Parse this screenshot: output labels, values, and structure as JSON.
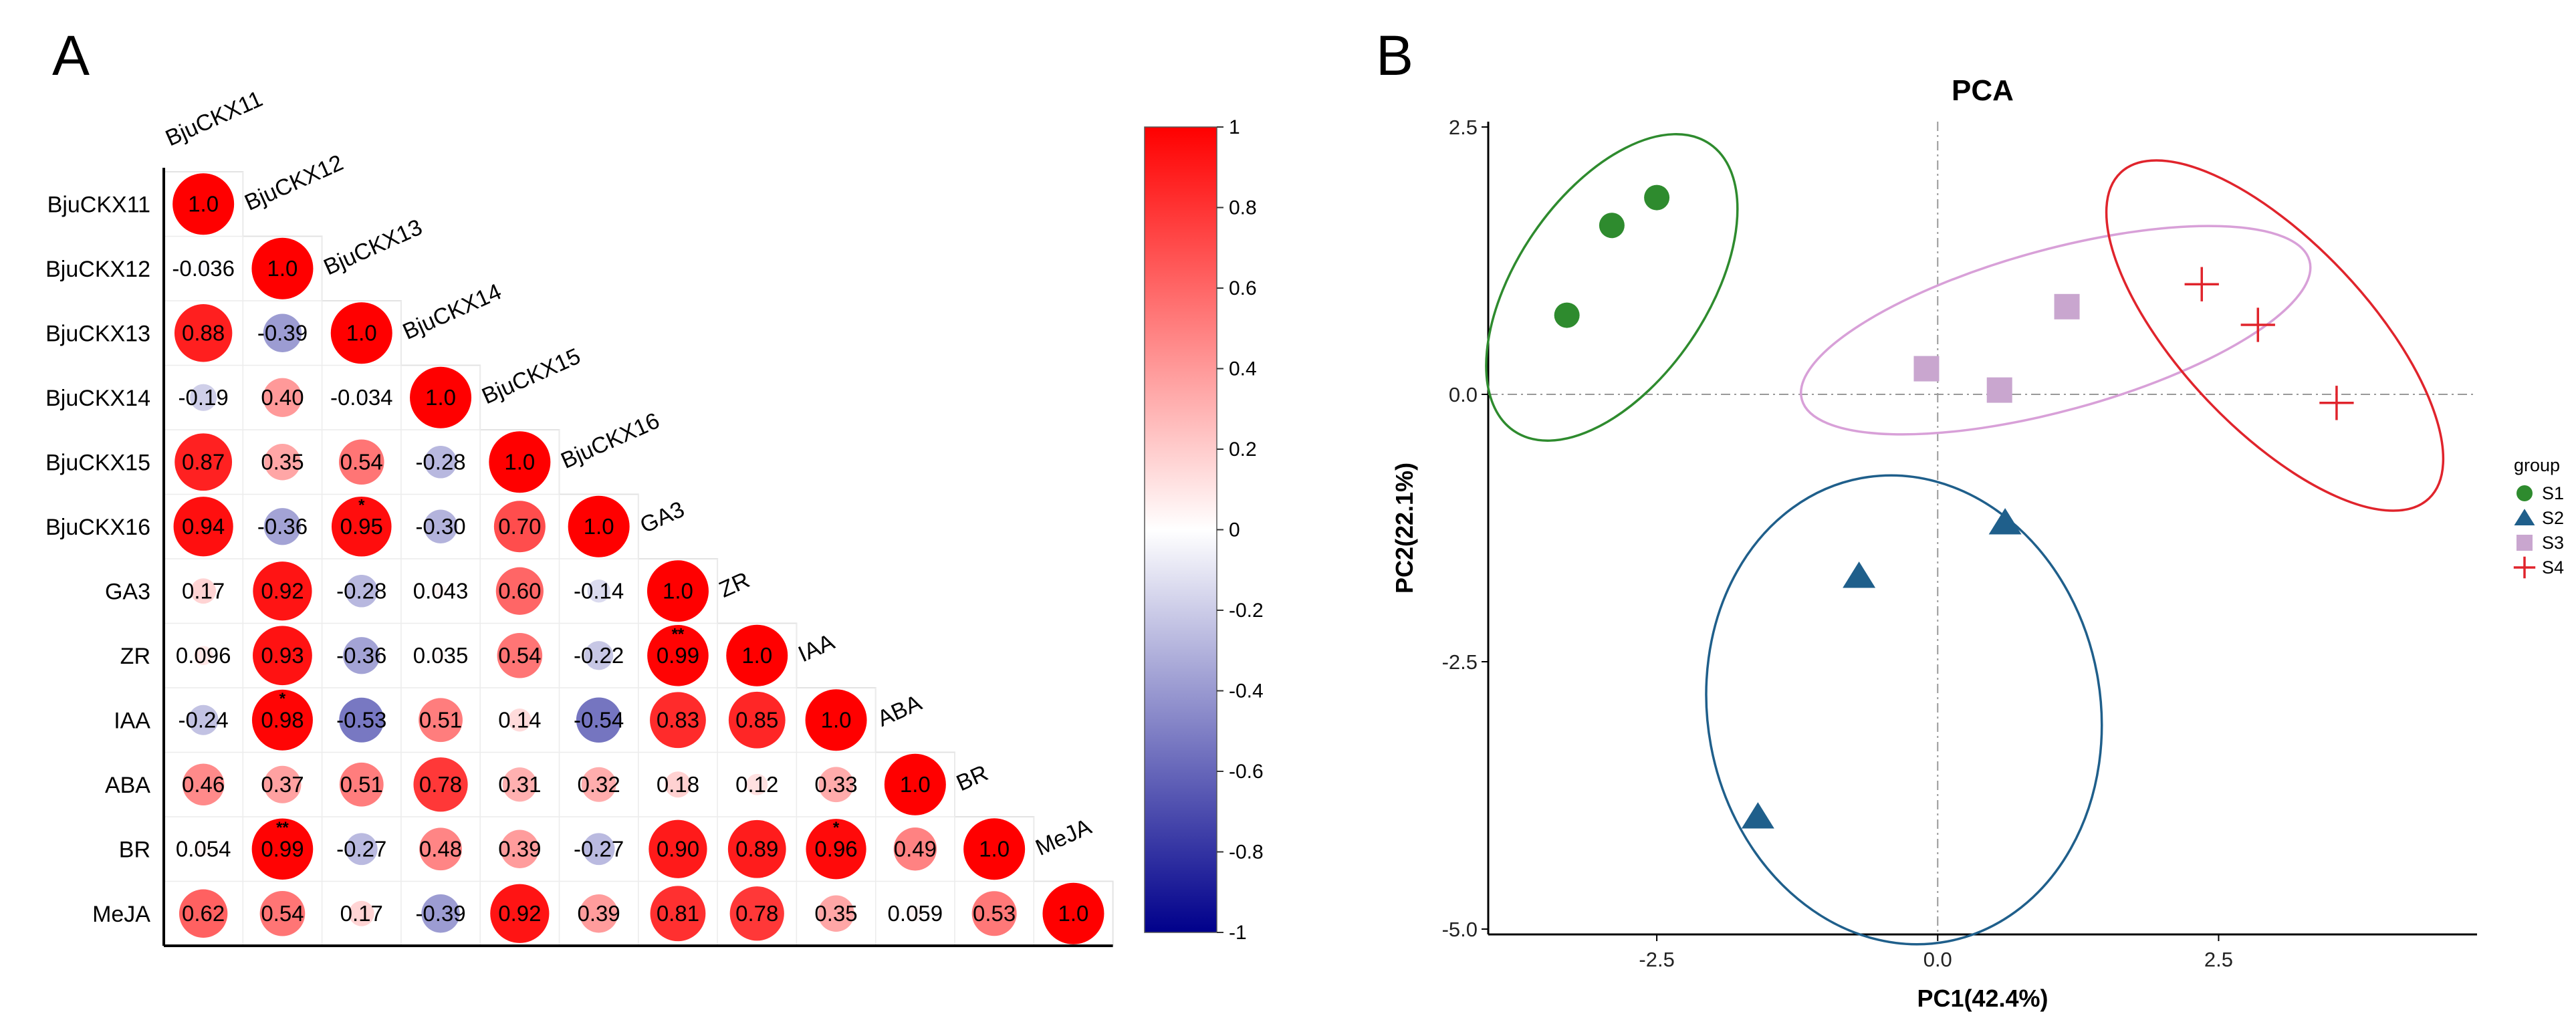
{
  "panels": {
    "left_label": "A",
    "right_label": "B"
  },
  "chart_data": [
    {
      "type": "heatmap",
      "variables": [
        "BjuCKX11",
        "BjuCKX12",
        "BjuCKX13",
        "BjuCKX14",
        "BjuCKX15",
        "BjuCKX16",
        "GA3",
        "ZR",
        "IAA",
        "ABA",
        "BR",
        "MeJA"
      ],
      "matrix_lower": [
        [
          1.0
        ],
        [
          -0.036,
          1.0
        ],
        [
          0.88,
          -0.39,
          1.0
        ],
        [
          -0.19,
          0.4,
          -0.034,
          1.0
        ],
        [
          0.87,
          0.35,
          0.54,
          -0.28,
          1.0
        ],
        [
          0.94,
          -0.36,
          0.95,
          -0.3,
          0.7,
          1.0
        ],
        [
          0.17,
          0.92,
          -0.28,
          0.043,
          0.6,
          -0.14,
          1.0
        ],
        [
          0.096,
          0.93,
          -0.36,
          0.035,
          0.54,
          -0.22,
          0.99,
          1.0
        ],
        [
          -0.24,
          0.98,
          -0.53,
          0.51,
          0.14,
          -0.54,
          0.83,
          0.85,
          1.0
        ],
        [
          0.46,
          0.37,
          0.51,
          0.78,
          0.31,
          0.32,
          0.18,
          0.12,
          0.33,
          1.0
        ],
        [
          0.054,
          0.99,
          -0.27,
          0.48,
          0.39,
          -0.27,
          0.9,
          0.89,
          0.96,
          0.49,
          1.0
        ],
        [
          0.62,
          0.54,
          0.17,
          -0.39,
          0.92,
          0.39,
          0.81,
          0.78,
          0.35,
          0.059,
          0.53,
          1.0
        ]
      ],
      "labels_lower": [
        [
          "1.0"
        ],
        [
          "-0.036",
          "1.0"
        ],
        [
          "0.88",
          "-0.39",
          "1.0"
        ],
        [
          "-0.19",
          "0.40",
          "-0.034",
          "1.0"
        ],
        [
          "0.87",
          "0.35",
          "0.54",
          "-0.28",
          "1.0"
        ],
        [
          "0.94",
          "-0.36",
          "0.95",
          "-0.30",
          "0.70",
          "1.0"
        ],
        [
          "0.17",
          "0.92",
          "-0.28",
          "0.043",
          "0.60",
          "-0.14",
          "1.0"
        ],
        [
          "0.096",
          "0.93",
          "-0.36",
          "0.035",
          "0.54",
          "-0.22",
          "0.99",
          "1.0"
        ],
        [
          "-0.24",
          "0.98",
          "-0.53",
          "0.51",
          "0.14",
          "-0.54",
          "0.83",
          "0.85",
          "1.0"
        ],
        [
          "0.46",
          "0.37",
          "0.51",
          "0.78",
          "0.31",
          "0.32",
          "0.18",
          "0.12",
          "0.33",
          "1.0"
        ],
        [
          "0.054",
          "0.99",
          "-0.27",
          "0.48",
          "0.39",
          "-0.27",
          "0.90",
          "0.89",
          "0.96",
          "0.49",
          "1.0"
        ],
        [
          "0.62",
          "0.54",
          "0.17",
          "-0.39",
          "0.92",
          "0.39",
          "0.81",
          "0.78",
          "0.35",
          "0.059",
          "0.53",
          "1.0"
        ]
      ],
      "significance": [
        {
          "row": 5,
          "col": 2,
          "mark": "*"
        },
        {
          "row": 7,
          "col": 6,
          "mark": "**"
        },
        {
          "row": 8,
          "col": 1,
          "mark": "*"
        },
        {
          "row": 10,
          "col": 1,
          "mark": "**"
        },
        {
          "row": 10,
          "col": 8,
          "mark": "*"
        }
      ],
      "colorbar": {
        "ticks": [
          "1",
          "0.8",
          "0.6",
          "0.4",
          "0.2",
          "0",
          "-0.2",
          "-0.4",
          "-0.6",
          "-0.8",
          "-1"
        ],
        "range": [
          -1,
          1
        ],
        "colors": {
          "high": "#FF0000",
          "mid": "#FFFFFF",
          "low": "#00008B"
        }
      }
    },
    {
      "type": "scatter",
      "title": "PCA",
      "xlabel": "PC1(42.4%)",
      "ylabel": "PC2(22.1%)",
      "xlim": [
        -4.0,
        4.8
      ],
      "ylim": [
        -5.05,
        2.55
      ],
      "xticks": [
        -2.5,
        0.0,
        2.5
      ],
      "yticks": [
        2.5,
        0.0,
        -2.5,
        -5.0
      ],
      "xtick_labels": [
        "-2.5",
        "0.0",
        "2.5"
      ],
      "ytick_labels": [
        "2.5",
        "0.0",
        "-2.5",
        "-5.0"
      ],
      "reference_lines": {
        "x": 0,
        "y": 0,
        "style": "dash-dot"
      },
      "legend": {
        "title": "group",
        "position": "right"
      },
      "series": [
        {
          "name": "S1",
          "color": "#2E8B2E",
          "marker": "circle",
          "points": [
            [
              -3.3,
              0.74
            ],
            [
              -2.9,
              1.58
            ],
            [
              -2.5,
              1.84
            ]
          ],
          "ellipse": {
            "center": [
              -2.9,
              1.0
            ],
            "semi_major": 1.6,
            "semi_minor": 0.86,
            "angle_deg": 57
          }
        },
        {
          "name": "S2",
          "color": "#1F5F8B",
          "marker": "triangle",
          "points": [
            [
              -1.6,
              -3.95
            ],
            [
              -0.7,
              -1.7
            ],
            [
              0.6,
              -1.2
            ]
          ],
          "ellipse": {
            "center": [
              -0.3,
              -2.95
            ],
            "semi_major": 2.2,
            "semi_minor": 1.75,
            "angle_deg": 100
          }
        },
        {
          "name": "S3",
          "color": "#C9A6CF",
          "marker": "square",
          "points": [
            [
              -0.1,
              0.24
            ],
            [
              0.55,
              0.04
            ],
            [
              1.15,
              0.82
            ]
          ],
          "ellipse": {
            "center": [
              1.05,
              0.6
            ],
            "semi_major": 2.35,
            "semi_minor": 0.75,
            "angle_deg": 16
          }
        },
        {
          "name": "S4",
          "color": "#E0242C",
          "marker": "plus",
          "points": [
            [
              2.35,
              1.03
            ],
            [
              2.85,
              0.65
            ],
            [
              3.55,
              -0.08
            ]
          ],
          "ellipse": {
            "center": [
              3.0,
              0.55
            ],
            "semi_major": 2.05,
            "semi_minor": 0.85,
            "angle_deg": -48
          }
        }
      ]
    }
  ]
}
